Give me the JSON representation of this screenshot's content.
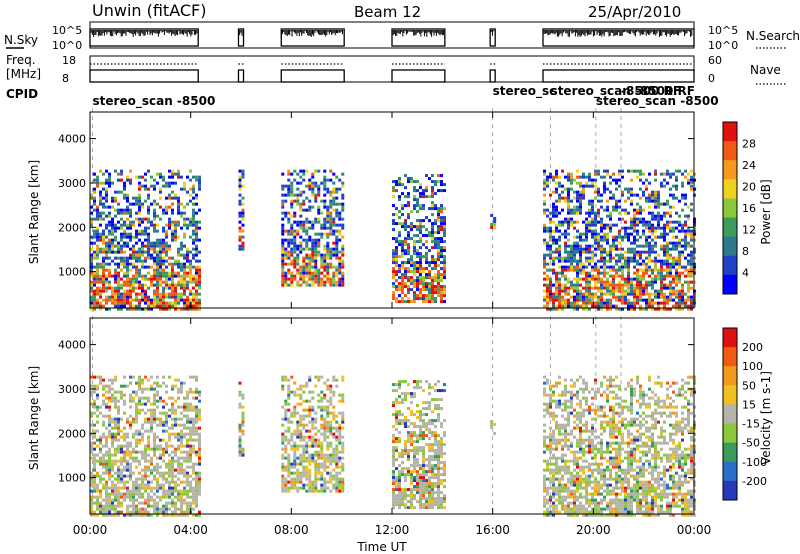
{
  "header": {
    "station": "Unwin (fitACF)",
    "beam": "Beam 12",
    "date": "25/Apr/2010"
  },
  "strip_labels": {
    "nsky": "N.Sky",
    "nsky_ticks": [
      "10^5",
      "10^0"
    ],
    "nsearch": "N.Search",
    "nsearch_ticks": [
      "10^5",
      "10^0"
    ],
    "freq_line1": "Freq.",
    "freq_line2": "[MHz]",
    "freq_ticks": [
      "18",
      "8"
    ],
    "nave": "Nave",
    "nave_ticks": [
      "60",
      "0"
    ],
    "cpid": "CPID"
  },
  "cpid_labels": [
    {
      "text": "stereo_scan -8500",
      "hour": 0.1,
      "row": 0
    },
    {
      "text": "stereo_sc",
      "hour": 16.0,
      "row": -1
    },
    {
      "text": "stereo_scan -8500 RF",
      "hour": 18.3,
      "row": -1
    },
    {
      "text": "-8500 RF",
      "hour": 21.1,
      "row": -1
    },
    {
      "text": "stereo_scan -8500",
      "hour": 20.1,
      "row": 0
    }
  ],
  "chart_data": [
    {
      "type": "heatmap",
      "name": "power",
      "xlabel": "Time UT",
      "ylabel": "Slant Range [km]",
      "xlim": [
        0,
        24
      ],
      "ylim": [
        180,
        4600
      ],
      "xticks": [
        "00:00",
        "04:00",
        "08:00",
        "12:00",
        "16:00",
        "20:00",
        "00:00"
      ],
      "yticks": [
        1000,
        2000,
        3000,
        4000
      ],
      "colorbar": {
        "label": "Power [dB]",
        "ticks": [
          "28",
          "24",
          "20",
          "16",
          "12",
          "8",
          "4"
        ],
        "colors": [
          "#0000ff",
          "#2040c8",
          "#2e7a8c",
          "#3c9a5a",
          "#8cc83c",
          "#f0d020",
          "#f49a1e",
          "#f05a14",
          "#e01010"
        ]
      },
      "scatter_segments": [
        {
          "t0": 0.0,
          "t1": 4.3,
          "r_lo": 180,
          "r_hi": 3300
        },
        {
          "t0": 5.9,
          "t1": 6.1,
          "r_lo": 1500,
          "r_hi": 3300
        },
        {
          "t0": 7.6,
          "t1": 10.1,
          "r_lo": 700,
          "r_hi": 3300
        },
        {
          "t0": 12.0,
          "t1": 14.1,
          "r_lo": 300,
          "r_hi": 3200
        },
        {
          "t0": 15.9,
          "t1": 16.1,
          "r_lo": 2000,
          "r_hi": 2300
        },
        {
          "t0": 18.0,
          "t1": 24.0,
          "r_lo": 180,
          "r_hi": 3300
        }
      ]
    },
    {
      "type": "heatmap",
      "name": "velocity",
      "xlabel": "Time UT",
      "ylabel": "Slant Range [km]",
      "xlim": [
        0,
        24
      ],
      "ylim": [
        180,
        4600
      ],
      "xticks": [
        "00:00",
        "04:00",
        "08:00",
        "12:00",
        "16:00",
        "20:00",
        "00:00"
      ],
      "yticks": [
        1000,
        2000,
        3000,
        4000
      ],
      "colorbar": {
        "label": "Velocity [m s-1]",
        "ticks": [
          "200",
          "100",
          "50",
          "15",
          "-15",
          "-50",
          "-100",
          "-200"
        ],
        "colors": [
          "#2838b8",
          "#2b6fc8",
          "#3c9a5a",
          "#8cc83c",
          "#b4b4a8",
          "#f0c020",
          "#f49a1e",
          "#f05a14",
          "#e01010"
        ]
      }
    }
  ],
  "footer": {
    "time_label": "Time UT"
  }
}
